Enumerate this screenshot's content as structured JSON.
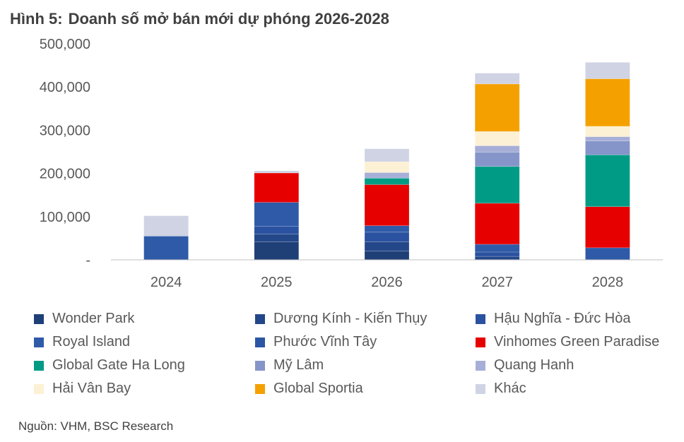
{
  "header": {
    "figure_label": "Hình 5:",
    "title": "Doanh số mở bán mới dự phóng 2026-2028"
  },
  "source": "Nguồn: VHM, BSC Research",
  "chart_data": {
    "type": "bar",
    "stacked": true,
    "title": "Doanh số mở bán mới dự phóng 2026-2028",
    "xlabel": "",
    "ylabel": "",
    "ylim": [
      0,
      500000
    ],
    "yticks": [
      0,
      100000,
      200000,
      300000,
      400000,
      500000
    ],
    "ytick_labels": [
      "-",
      "100,000",
      "200,000",
      "300,000",
      "400,000",
      "500,000"
    ],
    "categories": [
      "2024",
      "2025",
      "2026",
      "2027",
      "2028"
    ],
    "grid": false,
    "legend_position": "bottom",
    "series": [
      {
        "name": "Wonder Park",
        "color": "#1f3f77",
        "values": [
          0,
          42000,
          20000,
          0,
          0
        ]
      },
      {
        "name": "Dương Kính - Kiến Thụy",
        "color": "#24478a",
        "values": [
          0,
          18000,
          22000,
          8000,
          0
        ]
      },
      {
        "name": "Hậu Nghĩa - Đức Hòa",
        "color": "#2a52a0",
        "values": [
          0,
          18000,
          22000,
          10000,
          0
        ]
      },
      {
        "name": "Royal Island",
        "color": "#2f5aa8",
        "values": [
          55000,
          55000,
          15000,
          18000,
          28000
        ]
      },
      {
        "name": "Phước Vĩnh Tây",
        "color": "#2b56a5",
        "values": [
          0,
          0,
          0,
          0,
          0
        ]
      },
      {
        "name": "Vinhomes Green Paradise",
        "color": "#e60000",
        "values": [
          0,
          68000,
          95000,
          95000,
          95000
        ]
      },
      {
        "name": "Global Gate Ha Long",
        "color": "#009b85",
        "values": [
          0,
          0,
          15000,
          85000,
          120000
        ]
      },
      {
        "name": "Mỹ Lâm",
        "color": "#8595c9",
        "values": [
          0,
          0,
          0,
          33000,
          32000
        ]
      },
      {
        "name": "Quang Hanh",
        "color": "#a7afd8",
        "values": [
          0,
          0,
          13000,
          15000,
          10000
        ]
      },
      {
        "name": "Hải Vân Bay",
        "color": "#fdf1d5",
        "values": [
          0,
          0,
          25000,
          33000,
          24000
        ]
      },
      {
        "name": "Global Sportia",
        "color": "#f4a100",
        "values": [
          0,
          0,
          0,
          110000,
          110000
        ]
      },
      {
        "name": "Khác",
        "color": "#cfd3e4",
        "values": [
          47000,
          5000,
          30000,
          25000,
          38000
        ]
      }
    ]
  }
}
